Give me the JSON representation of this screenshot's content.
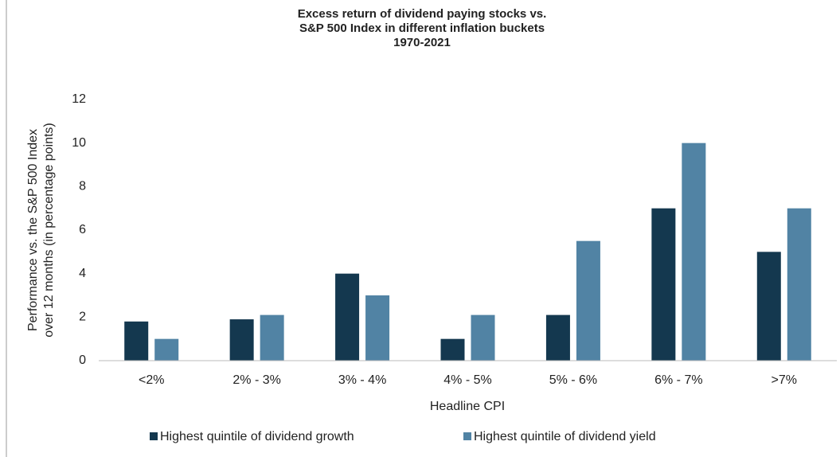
{
  "chart_data": {
    "type": "bar",
    "title": [
      "Excess return of dividend paying stocks vs.",
      "S&P 500 Index in different inflation buckets",
      "1970-2021"
    ],
    "y_label": [
      "Performance vs. the S&P 500 Index",
      "over 12 months (in percentage points)"
    ],
    "x_label": "Headline CPI",
    "categories": [
      "<2%",
      "2% - 3%",
      "3% - 4%",
      "4% - 5%",
      "5% - 6%",
      "6% - 7%",
      ">7%"
    ],
    "series": [
      {
        "name": "Highest quintile of dividend growth",
        "color": "#14384f",
        "values": [
          1.8,
          1.9,
          4.0,
          1.0,
          2.1,
          7.0,
          5.0
        ]
      },
      {
        "name": "Highest quintile of dividend yield",
        "color": "#5183a4",
        "values": [
          1.0,
          2.1,
          3.0,
          2.1,
          5.5,
          10.0,
          7.0
        ]
      }
    ],
    "ylim": [
      0,
      12
    ],
    "yticks": [
      0,
      2,
      4,
      6,
      8,
      10,
      12
    ],
    "grid": false,
    "legend": "bottom"
  }
}
